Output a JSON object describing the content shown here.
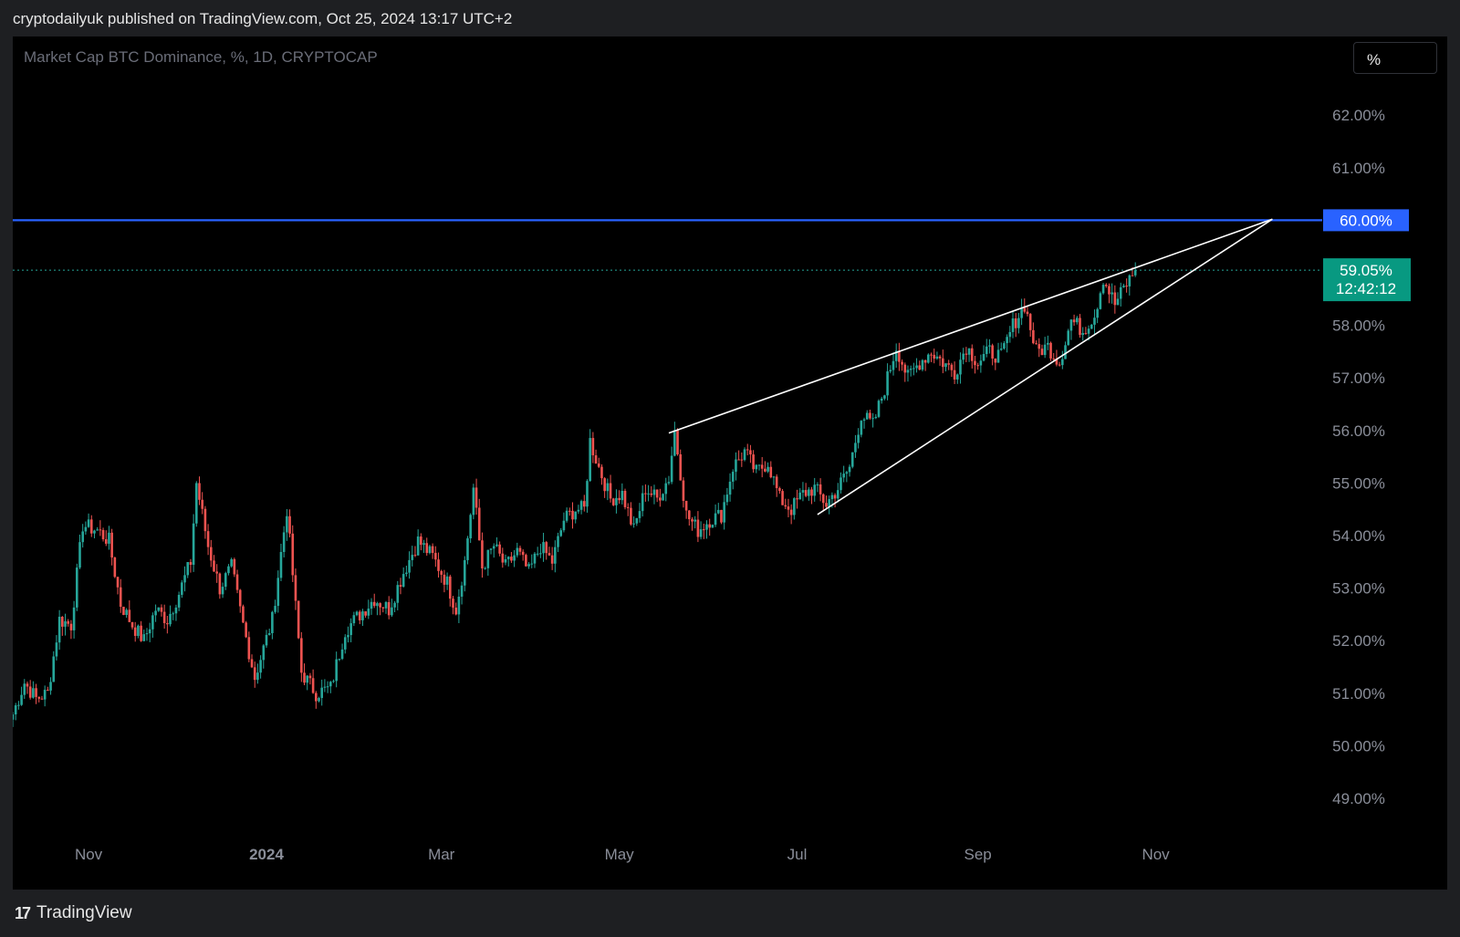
{
  "header": {
    "text": "cryptodailyuk published on TradingView.com, Oct 25, 2024 13:17 UTC+2"
  },
  "chart": {
    "symbol_line": "Market Cap BTC Dominance, %, 1D, CRYPTOCAP",
    "scale_button": "%"
  },
  "footer": {
    "brand": "TradingView",
    "logo_mark": "17"
  },
  "colors": {
    "background": "#000000",
    "up": "#26a69a",
    "down": "#ef5350",
    "horizontal_level": "#2962ff",
    "wedge_lines": "#0a0a0a",
    "price_label": "#089981"
  },
  "chart_data": {
    "type": "candlestick",
    "title": "Market Cap BTC Dominance, %, 1D, CRYPTOCAP",
    "y_unit": "%",
    "ylim": [
      48.5,
      62.7
    ],
    "y_ticks": [
      "49.00%",
      "50.00%",
      "51.00%",
      "52.00%",
      "53.00%",
      "54.00%",
      "55.00%",
      "56.00%",
      "57.00%",
      "58.00%",
      "61.00%",
      "62.00%"
    ],
    "y_tick_values": [
      49,
      50,
      51,
      52,
      53,
      54,
      55,
      56,
      57,
      58,
      61,
      62
    ],
    "x_ticks": [
      "Nov",
      "2024",
      "Mar",
      "May",
      "Jul",
      "Sep",
      "Nov"
    ],
    "x_tick_dates": [
      "2023-11-01",
      "2024-01-01",
      "2024-03-01",
      "2024-05-01",
      "2024-07-01",
      "2024-09-01",
      "2024-11-01"
    ],
    "x_range": [
      "2023-10-06",
      "2025-01-19"
    ],
    "grid": false,
    "daily_close_anchors": [
      [
        "2023-10-06",
        50.6
      ],
      [
        "2023-10-10",
        51.2
      ],
      [
        "2023-10-14",
        50.9
      ],
      [
        "2023-10-18",
        51.0
      ],
      [
        "2023-10-22",
        52.4
      ],
      [
        "2023-10-26",
        52.3
      ],
      [
        "2023-10-30",
        54.2
      ],
      [
        "2023-11-04",
        54.1
      ],
      [
        "2023-11-08",
        53.9
      ],
      [
        "2023-11-12",
        52.7
      ],
      [
        "2023-11-16",
        52.3
      ],
      [
        "2023-11-20",
        52.0
      ],
      [
        "2023-11-24",
        52.6
      ],
      [
        "2023-11-28",
        52.4
      ],
      [
        "2023-12-02",
        52.9
      ],
      [
        "2023-12-06",
        53.5
      ],
      [
        "2023-12-08",
        55.0
      ],
      [
        "2023-12-12",
        53.8
      ],
      [
        "2023-12-16",
        53.0
      ],
      [
        "2023-12-20",
        53.4
      ],
      [
        "2023-12-24",
        52.3
      ],
      [
        "2023-12-28",
        51.3
      ],
      [
        "2024-01-03",
        52.4
      ],
      [
        "2024-01-08",
        54.5
      ],
      [
        "2024-01-13",
        51.4
      ],
      [
        "2024-01-18",
        51.0
      ],
      [
        "2024-01-23",
        51.1
      ],
      [
        "2024-01-28",
        52.2
      ],
      [
        "2024-02-02",
        52.5
      ],
      [
        "2024-02-07",
        52.8
      ],
      [
        "2024-02-12",
        52.6
      ],
      [
        "2024-02-17",
        53.3
      ],
      [
        "2024-02-22",
        53.9
      ],
      [
        "2024-02-27",
        53.6
      ],
      [
        "2024-03-03",
        53.1
      ],
      [
        "2024-03-06",
        52.6
      ],
      [
        "2024-03-09",
        53.5
      ],
      [
        "2024-03-12",
        54.9
      ],
      [
        "2024-03-15",
        53.4
      ],
      [
        "2024-03-19",
        53.8
      ],
      [
        "2024-03-23",
        53.4
      ],
      [
        "2024-03-27",
        53.7
      ],
      [
        "2024-03-31",
        53.3
      ],
      [
        "2024-04-04",
        53.8
      ],
      [
        "2024-04-08",
        53.5
      ],
      [
        "2024-04-12",
        54.3
      ],
      [
        "2024-04-16",
        54.5
      ],
      [
        "2024-04-19",
        54.5
      ],
      [
        "2024-04-21",
        55.8
      ],
      [
        "2024-04-24",
        55.3
      ],
      [
        "2024-04-28",
        54.7
      ],
      [
        "2024-05-02",
        54.8
      ],
      [
        "2024-05-06",
        54.1
      ],
      [
        "2024-05-10",
        54.9
      ],
      [
        "2024-05-14",
        54.7
      ],
      [
        "2024-05-18",
        55.1
      ],
      [
        "2024-05-20",
        56.0
      ],
      [
        "2024-05-24",
        54.4
      ],
      [
        "2024-05-28",
        54.1
      ],
      [
        "2024-06-01",
        54.3
      ],
      [
        "2024-06-05",
        54.4
      ],
      [
        "2024-06-09",
        55.3
      ],
      [
        "2024-06-13",
        55.6
      ],
      [
        "2024-06-17",
        55.2
      ],
      [
        "2024-06-21",
        55.4
      ],
      [
        "2024-06-25",
        54.7
      ],
      [
        "2024-06-29",
        54.5
      ],
      [
        "2024-07-03",
        54.8
      ],
      [
        "2024-07-07",
        54.9
      ],
      [
        "2024-07-11",
        54.6
      ],
      [
        "2024-07-15",
        54.9
      ],
      [
        "2024-07-19",
        55.3
      ],
      [
        "2024-07-23",
        56.3
      ],
      [
        "2024-07-27",
        56.1
      ],
      [
        "2024-07-31",
        56.8
      ],
      [
        "2024-08-04",
        57.6
      ],
      [
        "2024-08-08",
        57.0
      ],
      [
        "2024-08-12",
        57.3
      ],
      [
        "2024-08-16",
        57.5
      ],
      [
        "2024-08-20",
        57.3
      ],
      [
        "2024-08-24",
        57.1
      ],
      [
        "2024-08-28",
        57.6
      ],
      [
        "2024-09-01",
        57.3
      ],
      [
        "2024-09-05",
        57.5
      ],
      [
        "2024-09-09",
        57.4
      ],
      [
        "2024-09-13",
        58.0
      ],
      [
        "2024-09-17",
        58.4
      ],
      [
        "2024-09-21",
        57.5
      ],
      [
        "2024-09-25",
        57.6
      ],
      [
        "2024-09-29",
        57.3
      ],
      [
        "2024-10-03",
        58.1
      ],
      [
        "2024-10-07",
        57.9
      ],
      [
        "2024-10-11",
        58.2
      ],
      [
        "2024-10-14",
        58.9
      ],
      [
        "2024-10-18",
        58.4
      ],
      [
        "2024-10-21",
        58.7
      ],
      [
        "2024-10-25",
        59.05
      ]
    ],
    "horizontal_level": {
      "value": 60.0,
      "label": "60.00%"
    },
    "last_price": {
      "value": 59.05,
      "label": "59.05%",
      "countdown": "12:42:12"
    },
    "trendlines": [
      {
        "name": "upper-wedge",
        "from": [
          "2024-05-18",
          55.95
        ],
        "to": [
          "2024-12-11",
          60.02
        ]
      },
      {
        "name": "lower-wedge",
        "from": [
          "2024-07-08",
          54.4
        ],
        "to": [
          "2024-12-11",
          60.02
        ]
      }
    ]
  }
}
